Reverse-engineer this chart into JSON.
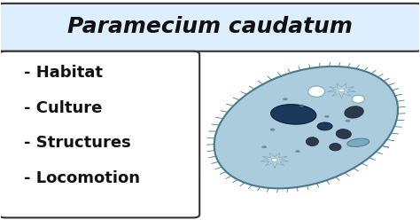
{
  "title": "Paramecium caudatum",
  "title_fontsize": 18,
  "title_bg": "#ddeeff",
  "bg_color": "#ffffff",
  "box_bg": "#ffffff",
  "bullet_items": [
    "- Habitat",
    "- Culture",
    "- Structures",
    "- Locomotion"
  ],
  "bullet_fontsize": 13,
  "body_color": "#aaccdd",
  "nucleus_color": "#1a3a5c",
  "outline_color": "#4a7a8a",
  "cillia_color": "#5a8a9a",
  "star_fill": "#b8d0dc",
  "star_edge": "#7aaabb"
}
